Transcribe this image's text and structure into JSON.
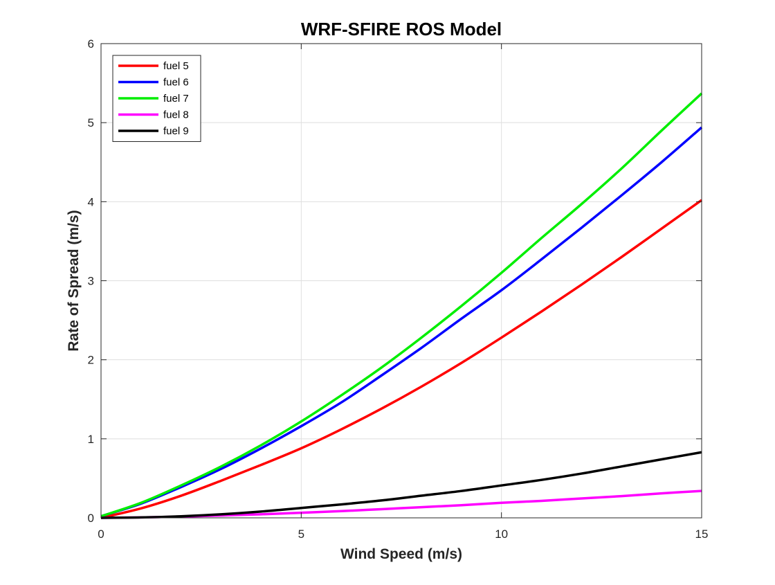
{
  "chart_data": {
    "type": "line",
    "title": "WRF-SFIRE ROS Model",
    "xlabel": "Wind Speed (m/s)",
    "ylabel": "Rate of Spread (m/s)",
    "xlim": [
      0,
      15
    ],
    "ylim": [
      0,
      6
    ],
    "xticks": [
      0,
      5,
      10,
      15
    ],
    "yticks": [
      0,
      1,
      2,
      3,
      4,
      5,
      6
    ],
    "grid": true,
    "legend_position": "top-left",
    "x": [
      0,
      1,
      2,
      3,
      4,
      5,
      6,
      7,
      8,
      9,
      10,
      11,
      12,
      13,
      14,
      15
    ],
    "series": [
      {
        "name": "fuel 5",
        "color": "#ff0000",
        "values": [
          0.0,
          0.12,
          0.28,
          0.47,
          0.67,
          0.88,
          1.12,
          1.38,
          1.66,
          1.96,
          2.28,
          2.61,
          2.95,
          3.3,
          3.66,
          4.02
        ]
      },
      {
        "name": "fuel 6",
        "color": "#0000ff",
        "values": [
          0.02,
          0.18,
          0.39,
          0.62,
          0.88,
          1.16,
          1.46,
          1.8,
          2.15,
          2.52,
          2.88,
          3.27,
          3.67,
          4.08,
          4.5,
          4.94
        ]
      },
      {
        "name": "fuel 7",
        "color": "#00ee00",
        "values": [
          0.02,
          0.19,
          0.41,
          0.65,
          0.92,
          1.22,
          1.55,
          1.9,
          2.28,
          2.68,
          3.1,
          3.54,
          3.97,
          4.42,
          4.9,
          5.37
        ]
      },
      {
        "name": "fuel 8",
        "color": "#ff00ff",
        "values": [
          0.0,
          0.005,
          0.015,
          0.03,
          0.045,
          0.065,
          0.085,
          0.11,
          0.135,
          0.16,
          0.19,
          0.215,
          0.245,
          0.275,
          0.31,
          0.34
        ]
      },
      {
        "name": "fuel 9",
        "color": "#000000",
        "values": [
          0.0,
          0.005,
          0.02,
          0.045,
          0.08,
          0.125,
          0.17,
          0.22,
          0.28,
          0.34,
          0.41,
          0.48,
          0.56,
          0.65,
          0.74,
          0.83
        ]
      }
    ]
  }
}
